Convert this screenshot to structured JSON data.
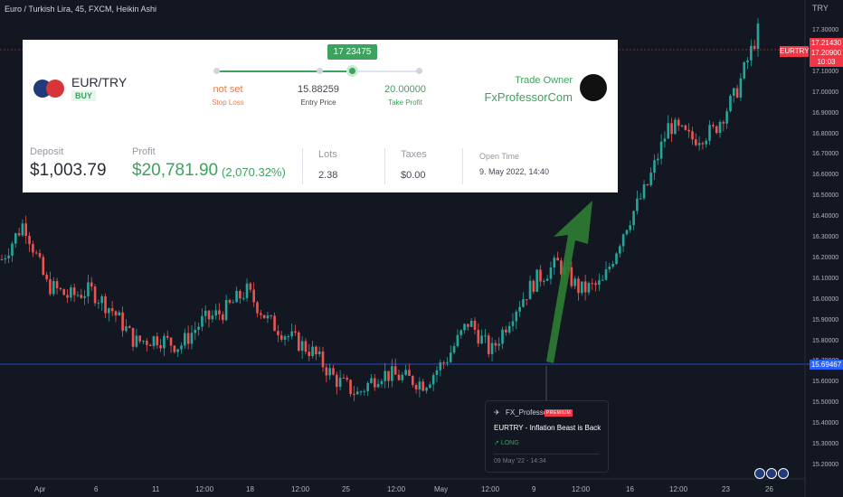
{
  "symbol_header": "Euro / Turkish Lira, 45, FXCM, Heikin Ashi",
  "scale_currency": "TRY",
  "price_tags": {
    "high": "17.21430",
    "last": "17.20900",
    "timer": "10:03",
    "symbol": "EURTRY",
    "hline": "15.69467"
  },
  "trade_card": {
    "pair": "EUR/TRY",
    "side": "BUY",
    "tooltip_price": "17 23475",
    "stop_loss_value": "not set",
    "stop_loss_label": "Stop Loss",
    "entry_value": "15.88259",
    "entry_label": "Entry Price",
    "take_profit_value": "20.00000",
    "take_profit_label": "Take Profit",
    "owner_label": "Trade Owner",
    "owner_name": "FxProfessorCom",
    "deposit_label": "Deposit",
    "deposit_value": "$1,003.79",
    "profit_label": "Profit",
    "profit_value": "$20,781.90",
    "profit_pct": "(2,070.32%)",
    "lots_label": "Lots",
    "lots_value": "2.38",
    "taxes_label": "Taxes",
    "taxes_value": "$0.00",
    "open_time_label": "Open Time",
    "open_time_value": "9. May 2022, 14:40",
    "slider_progress_pct": 68
  },
  "idea_card": {
    "author": "FX_Professor",
    "badge": "PREMIUM",
    "title": "EURTRY - Inflation Beast is Back",
    "direction": "LONG",
    "date": "09 May '22 - 14:34"
  },
  "x_axis_labels": [
    "Apr",
    "6",
    "11",
    "12:00",
    "18",
    "12:00",
    "25",
    "12:00",
    "May",
    "12:00",
    "9",
    "12:00",
    "16",
    "12:00",
    "23",
    "26"
  ],
  "y_axis_labels": [
    "17.30000",
    "17.20000",
    "17.10000",
    "17.00000",
    "16.90000",
    "16.80000",
    "16.70000",
    "16.60000",
    "16.50000",
    "16.40000",
    "16.30000",
    "16.20000",
    "16.10000",
    "16.00000",
    "15.90000",
    "15.80000",
    "15.70000",
    "15.60000",
    "15.50000",
    "15.40000",
    "15.30000",
    "15.20000"
  ],
  "colors": {
    "bull": "#26a69a",
    "bear": "#ef5350",
    "arrow": "#2e7d32",
    "accent": "#3ca25e",
    "hline": "#2962ff"
  },
  "chart_data": {
    "type": "candlestick",
    "y_unit": "TRY",
    "close_path": [
      [
        "Apr 1",
        16.2
      ],
      [
        "Apr 4",
        16.38
      ],
      [
        "Apr 6",
        16.08
      ],
      [
        "Apr 8",
        16.02
      ],
      [
        "Apr 11",
        16.05
      ],
      [
        "Apr 12",
        15.95
      ],
      [
        "Apr 13",
        15.8
      ],
      [
        "Apr 15",
        15.82
      ],
      [
        "Apr 18",
        15.78
      ],
      [
        "Apr 19",
        15.9
      ],
      [
        "Apr 20",
        15.95
      ],
      [
        "Apr 21",
        16.05
      ],
      [
        "Apr 22",
        15.9
      ],
      [
        "Apr 25",
        15.82
      ],
      [
        "Apr 26",
        15.75
      ],
      [
        "Apr 27",
        15.62
      ],
      [
        "Apr 28",
        15.55
      ],
      [
        "Apr 29",
        15.65
      ],
      [
        "May 2",
        15.63
      ],
      [
        "May 3",
        15.6
      ],
      [
        "May 4",
        15.72
      ],
      [
        "May 5",
        15.9
      ],
      [
        "May 6",
        15.75
      ],
      [
        "May 9",
        15.95
      ],
      [
        "May 10",
        16.1
      ],
      [
        "May 11",
        16.18
      ],
      [
        "May 12",
        16.05
      ],
      [
        "May 13",
        16.08
      ],
      [
        "May 16",
        16.35
      ],
      [
        "May 17",
        16.55
      ],
      [
        "May 18",
        16.85
      ],
      [
        "May 19",
        16.78
      ],
      [
        "May 20",
        16.82
      ],
      [
        "May 23",
        17.0
      ],
      [
        "May 24",
        17.3
      ]
    ]
  }
}
